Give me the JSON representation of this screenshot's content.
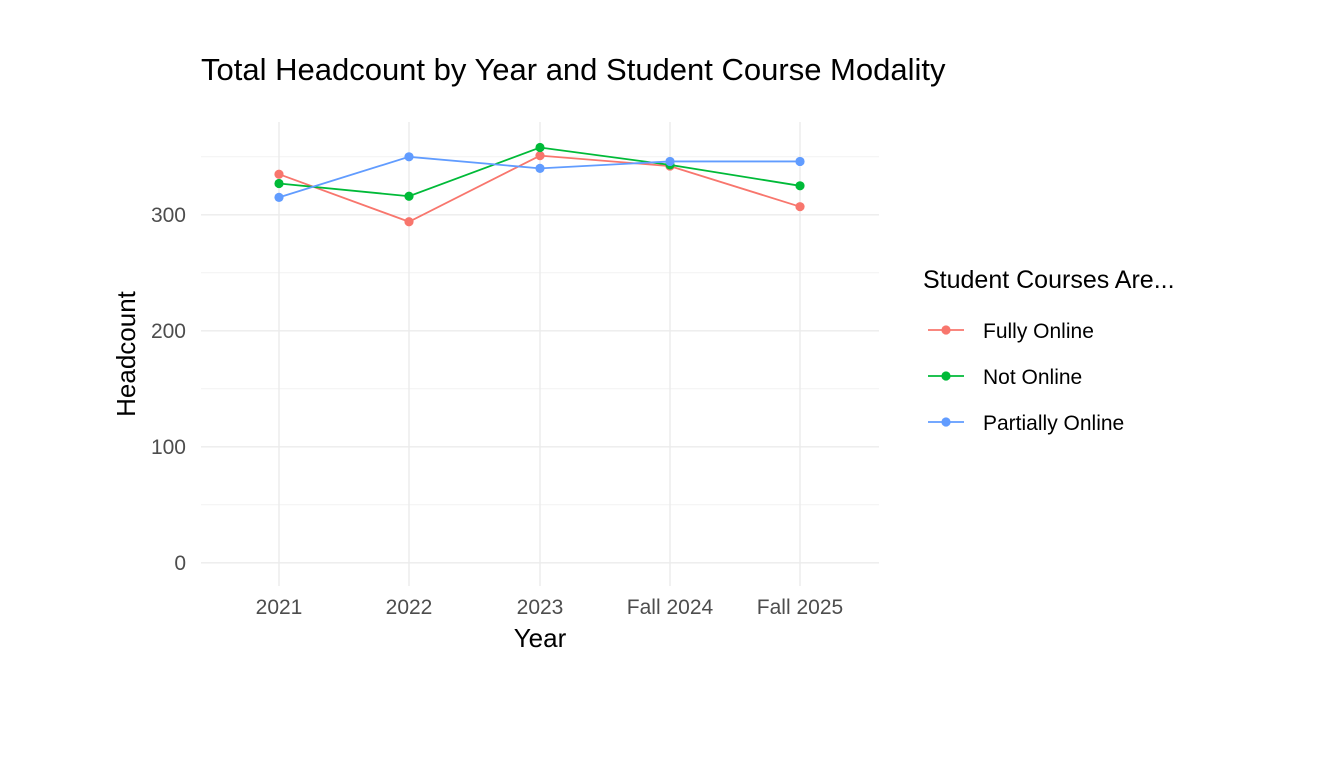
{
  "chart_data": {
    "type": "line",
    "title": "Total Headcount by Year and Student Course Modality",
    "xlabel": "Year",
    "ylabel": "Headcount",
    "categories": [
      "2021",
      "2022",
      "2023",
      "Fall 2024",
      "Fall 2025"
    ],
    "ylim": [
      -20,
      380
    ],
    "yticks": [
      0,
      100,
      200,
      300
    ],
    "grid": true,
    "legend": {
      "title": "Student Courses Are...",
      "position": "right"
    },
    "series": [
      {
        "name": "Fully Online",
        "color": "#F8766D",
        "values": [
          335,
          294,
          351,
          342,
          307
        ]
      },
      {
        "name": "Not Online",
        "color": "#00BA38",
        "values": [
          327,
          316,
          358,
          343,
          325
        ]
      },
      {
        "name": "Partially Online",
        "color": "#619CFF",
        "values": [
          315,
          350,
          340,
          346,
          346
        ]
      }
    ]
  }
}
